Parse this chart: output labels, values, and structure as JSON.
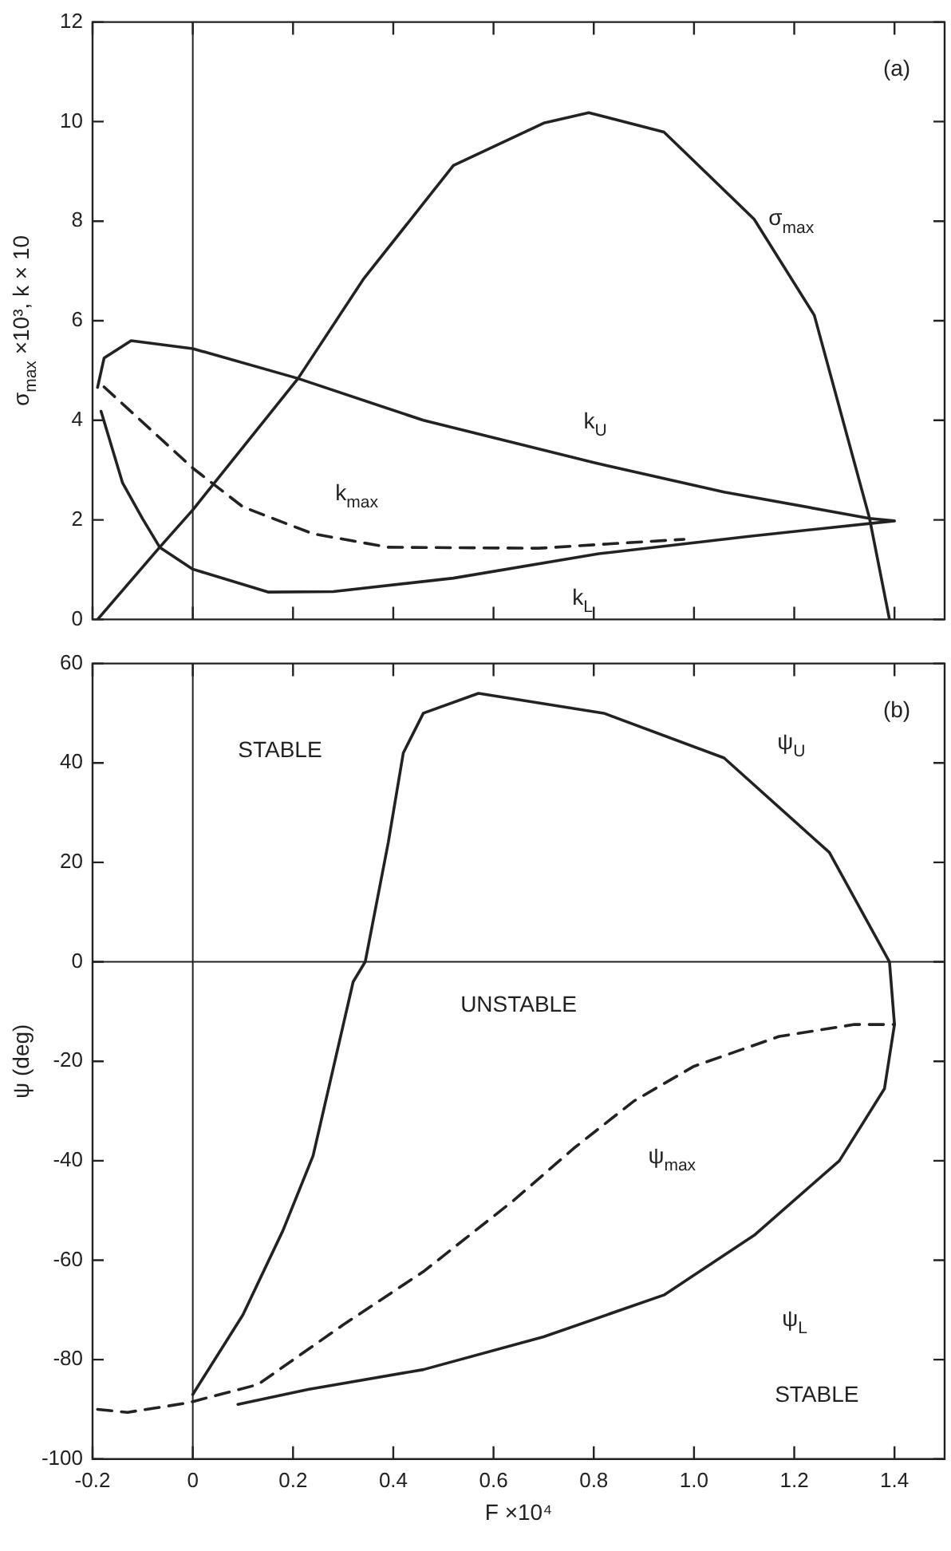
{
  "chart_data": [
    {
      "type": "line",
      "title": "(a)",
      "ylabel": "σ$_{max}$ ×10³, k × 10",
      "xlim": [
        -0.2,
        1.5
      ],
      "ylim": [
        0,
        12
      ],
      "xticks": [
        -0.2,
        0,
        0.2,
        0.4,
        0.6,
        0.8,
        1,
        1.2,
        1.4
      ],
      "yticks": [
        0,
        2,
        4,
        6,
        8,
        10,
        12
      ],
      "tick_labels": "y",
      "marker": "none",
      "ref_lines": [
        {
          "axis": "x",
          "value": 0
        }
      ],
      "annotations": [
        "σ$_{max}$",
        "k$_{U}$",
        "k$_{max}$",
        "k$_{L}$"
      ],
      "series": [
        {
          "color": "#222222",
          "line_style": "solid",
          "x": [
            -0.19,
            -0.066,
            0.0,
            0.21,
            0.34,
            0.52,
            0.7,
            0.79,
            0.94,
            1.12,
            1.24,
            1.35,
            1.39
          ],
          "values": [
            0,
            1.45,
            2.2,
            4.84,
            6.83,
            9.12,
            9.97,
            10.18,
            9.79,
            8.04,
            6.11,
            2.04,
            0
          ]
        },
        {
          "color": "#222222",
          "line_style": "solid",
          "x": [
            -0.183,
            -0.14,
            -0.1,
            -0.066,
            0.0,
            0.15,
            0.28,
            0.52,
            0.81,
            1.11,
            1.4,
            1.35,
            1.06,
            0.8,
            0.46,
            0.21,
            0.0,
            -0.123,
            -0.177,
            -0.19
          ],
          "values": [
            4.18,
            2.74,
            2.02,
            1.45,
            1.01,
            0.55,
            0.56,
            0.83,
            1.32,
            1.67,
            1.98,
            2.03,
            2.56,
            3.15,
            4.0,
            4.84,
            5.44,
            5.6,
            5.25,
            4.66
          ]
        },
        {
          "color": "#222222",
          "line_style": "dashed",
          "x": [
            -0.177,
            0.0,
            0.1,
            0.24,
            0.39,
            0.69,
            0.98
          ],
          "values": [
            4.67,
            3.04,
            2.26,
            1.72,
            1.45,
            1.43,
            1.61
          ]
        }
      ]
    },
    {
      "type": "line",
      "title": "(b)",
      "xlabel": "F ×10⁴",
      "ylabel": "ψ (deg)",
      "xlim": [
        -0.2,
        1.5
      ],
      "ylim": [
        -100,
        60
      ],
      "xticks": [
        -0.2,
        0,
        0.2,
        0.4,
        0.6,
        0.8,
        {
          "value": 1,
          "label": "1.0"
        },
        1.2,
        1.4
      ],
      "yticks": [
        -100,
        -80,
        -60,
        -40,
        -20,
        0,
        20,
        40,
        60
      ],
      "marker": "none",
      "ref_lines": [
        {
          "axis": "x",
          "value": 0
        },
        {
          "axis": "y",
          "value": 0
        }
      ],
      "annotations": [
        "STABLE",
        "UNSTABLE",
        "ψ$_{U}$",
        "ψ$_{max}$",
        "ψ$_{L}$",
        "STABLE"
      ],
      "series": [
        {
          "color": "#222222",
          "line_style": "solid",
          "x": [
            0.0,
            0.1,
            0.18,
            0.24,
            0.32,
            0.344,
            0.39,
            0.42,
            0.46,
            0.57,
            0.82,
            1.06,
            1.27,
            1.39,
            1.4,
            1.38,
            1.29,
            1.12,
            0.94,
            0.7,
            0.46,
            0.23,
            0.09
          ],
          "values": [
            -87,
            -71,
            -54,
            -39,
            -4,
            0,
            24,
            42,
            50,
            54,
            50,
            41,
            22,
            0,
            -12.6,
            -25.5,
            -40,
            -55,
            -67,
            -75.4,
            -82,
            -86,
            -89
          ]
        },
        {
          "color": "#222222",
          "line_style": "dashed",
          "x": [
            -0.19,
            -0.13,
            -0.01,
            0.13,
            0.3,
            0.46,
            0.64,
            0.76,
            0.88,
            1.0,
            1.17,
            1.32,
            1.4
          ],
          "values": [
            -90,
            -90.6,
            -88.7,
            -85,
            -73,
            -62.3,
            -48,
            -37.5,
            -28,
            -21,
            -15,
            -12.6,
            -12.6
          ]
        }
      ]
    }
  ]
}
